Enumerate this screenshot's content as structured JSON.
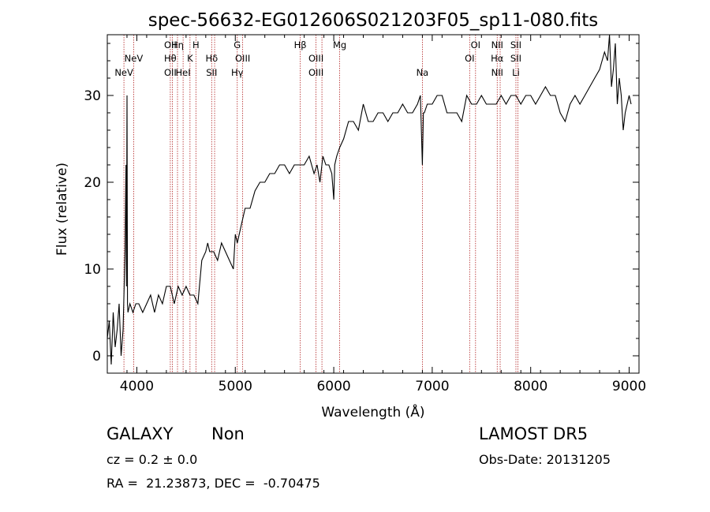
{
  "chart_data": {
    "type": "line",
    "title": "spec-56632-EG012606S021203F05_sp11-080.fits",
    "xlabel": "Wavelength (Å)",
    "ylabel": "Flux (relative)",
    "xlim": [
      3700,
      9100
    ],
    "ylim": [
      -2,
      37
    ],
    "xticks": [
      4000,
      5000,
      6000,
      7000,
      8000,
      9000
    ],
    "yticks": [
      0,
      10,
      20,
      30
    ],
    "series": [
      {
        "x": [
          3700,
          3720,
          3740,
          3760,
          3780,
          3800,
          3820,
          3840,
          3860,
          3880,
          3890,
          3895,
          3900,
          3905,
          3910,
          3930,
          3960,
          3990,
          4020,
          4060,
          4100,
          4140,
          4180,
          4220,
          4260,
          4300,
          4340,
          4380,
          4420,
          4460,
          4500,
          4540,
          4580,
          4620,
          4660,
          4700,
          4720,
          4740,
          4780,
          4820,
          4860,
          4900,
          4940,
          4980,
          5000,
          5020,
          5060,
          5100,
          5150,
          5200,
          5250,
          5300,
          5350,
          5400,
          5450,
          5500,
          5550,
          5600,
          5650,
          5700,
          5750,
          5800,
          5830,
          5860,
          5890,
          5920,
          5950,
          5980,
          6000,
          6010,
          6030,
          6060,
          6100,
          6150,
          6200,
          6250,
          6300,
          6350,
          6400,
          6450,
          6500,
          6550,
          6600,
          6650,
          6700,
          6750,
          6800,
          6850,
          6880,
          6900,
          6910,
          6920,
          6950,
          7000,
          7050,
          7100,
          7150,
          7200,
          7250,
          7300,
          7350,
          7400,
          7450,
          7500,
          7550,
          7600,
          7650,
          7700,
          7750,
          7800,
          7850,
          7900,
          7950,
          8000,
          8050,
          8100,
          8150,
          8200,
          8250,
          8300,
          8350,
          8400,
          8450,
          8500,
          8550,
          8600,
          8650,
          8700,
          8750,
          8780,
          8800,
          8820,
          8840,
          8860,
          8880,
          8900,
          8920,
          8940,
          8960,
          8980,
          9000,
          9020
        ],
        "y": [
          2,
          4,
          -1,
          5,
          1,
          3,
          6,
          0,
          3,
          12,
          22,
          8,
          30,
          6,
          5,
          6,
          5,
          6,
          6,
          5,
          6,
          7,
          5,
          7,
          6,
          8,
          8,
          6,
          8,
          7,
          8,
          7,
          7,
          6,
          11,
          12,
          13,
          12,
          12,
          11,
          13,
          12,
          11,
          10,
          14,
          13,
          15,
          17,
          17,
          19,
          20,
          20,
          21,
          21,
          22,
          22,
          21,
          22,
          22,
          22,
          23,
          21,
          22,
          20,
          23,
          22,
          22,
          21,
          18,
          22,
          23,
          24,
          25,
          27,
          27,
          26,
          29,
          27,
          27,
          28,
          28,
          27,
          28,
          28,
          29,
          28,
          28,
          29,
          30,
          22,
          28,
          28,
          29,
          29,
          30,
          30,
          28,
          28,
          28,
          27,
          30,
          29,
          29,
          30,
          29,
          29,
          29,
          30,
          29,
          30,
          30,
          29,
          30,
          30,
          29,
          30,
          31,
          30,
          30,
          28,
          27,
          29,
          30,
          29,
          30,
          31,
          32,
          33,
          35,
          34,
          37,
          31,
          33,
          36,
          29,
          32,
          30,
          26,
          28,
          29,
          30,
          29
        ],
        "color": "#000000"
      }
    ],
    "lines": [
      {
        "wl": 3869,
        "labels": [
          "NeV"
        ],
        "row": [
          2
        ]
      },
      {
        "wl": 3968,
        "labels": [
          "NeV"
        ],
        "row": [
          1
        ]
      },
      {
        "wl": 4340,
        "labels": [
          "OII",
          "Hθ",
          "OII"
        ],
        "row": [
          0,
          1,
          2
        ]
      },
      {
        "wl": 4361,
        "labels": [],
        "row": []
      },
      {
        "wl": 4413,
        "labels": [
          "Hη"
        ],
        "row": [
          0
        ]
      },
      {
        "wl": 4470,
        "labels": [
          "HeI"
        ],
        "row": [
          2
        ]
      },
      {
        "wl": 4540,
        "labels": [
          "K"
        ],
        "row": [
          1
        ]
      },
      {
        "wl": 4600,
        "labels": [
          "H"
        ],
        "row": [
          0
        ]
      },
      {
        "wl": 4760,
        "labels": [
          "Hδ",
          "SII"
        ],
        "row": [
          1,
          2
        ]
      },
      {
        "wl": 4790,
        "labels": [],
        "row": []
      },
      {
        "wl": 5020,
        "labels": [
          "G",
          "Hγ"
        ],
        "row": [
          0,
          2
        ]
      },
      {
        "wl": 5075,
        "labels": [
          "OIII"
        ],
        "row": [
          1
        ]
      },
      {
        "wl": 5660,
        "labels": [
          "Hβ"
        ],
        "row": [
          0
        ]
      },
      {
        "wl": 5820,
        "labels": [
          "OIII",
          "OIII"
        ],
        "row": [
          1,
          2
        ]
      },
      {
        "wl": 5880,
        "labels": [],
        "row": []
      },
      {
        "wl": 6060,
        "labels": [
          "Mg"
        ],
        "row": [
          0
        ]
      },
      {
        "wl": 6900,
        "labels": [
          "Na"
        ],
        "row": [
          2
        ]
      },
      {
        "wl": 7380,
        "labels": [
          "OI"
        ],
        "row": [
          1
        ]
      },
      {
        "wl": 7440,
        "labels": [
          "OI"
        ],
        "row": [
          0
        ]
      },
      {
        "wl": 7660,
        "labels": [
          "NII",
          "Hα",
          "NII"
        ],
        "row": [
          0,
          1,
          2
        ]
      },
      {
        "wl": 7690,
        "labels": [],
        "row": []
      },
      {
        "wl": 7850,
        "labels": [
          "SII",
          "SII",
          "Li"
        ],
        "row": [
          0,
          1,
          2
        ]
      },
      {
        "wl": 7870,
        "labels": [],
        "row": []
      }
    ]
  },
  "info": {
    "class": "GALAXY",
    "subclass": "Non",
    "cz": "cz = 0.2 ± 0.0",
    "radec": "RA =  21.23873, DEC =  -0.70475",
    "survey": "LAMOST DR5",
    "obsdate": "Obs-Date: 20131205"
  },
  "colors": {
    "spectrum": "#000000",
    "line_markers": "#b22222"
  }
}
